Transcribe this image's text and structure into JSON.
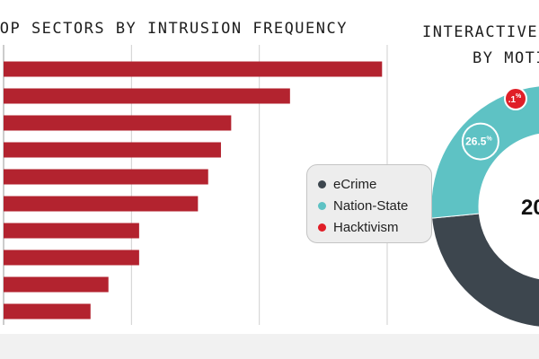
{
  "chart_data": [
    {
      "type": "bar",
      "orientation": "horizontal",
      "title": "TOP SECTORS BY INTRUSION FREQUENCY",
      "categories": [
        "",
        "",
        "",
        "",
        "",
        "",
        "",
        "",
        "",
        ""
      ],
      "values": [
        148,
        112,
        89,
        85,
        80,
        76,
        53,
        53,
        41,
        34
      ],
      "xlim": [
        0,
        150
      ],
      "grid": true,
      "color": "#b3232f"
    },
    {
      "type": "pie",
      "title_lines": [
        "INTERACTIVE",
        "BY MOTIVATION"
      ],
      "labels": [
        "eCrime",
        "Nation-State",
        "Hacktivism"
      ],
      "values": [
        73.4,
        26.5,
        0.1
      ],
      "value_labels": [
        "",
        "26.5",
        ".1"
      ],
      "value_suffix": "%",
      "center_label": "20",
      "colors": [
        "#3d464e",
        "#5ec2c4",
        "#e01e27"
      ]
    }
  ]
}
